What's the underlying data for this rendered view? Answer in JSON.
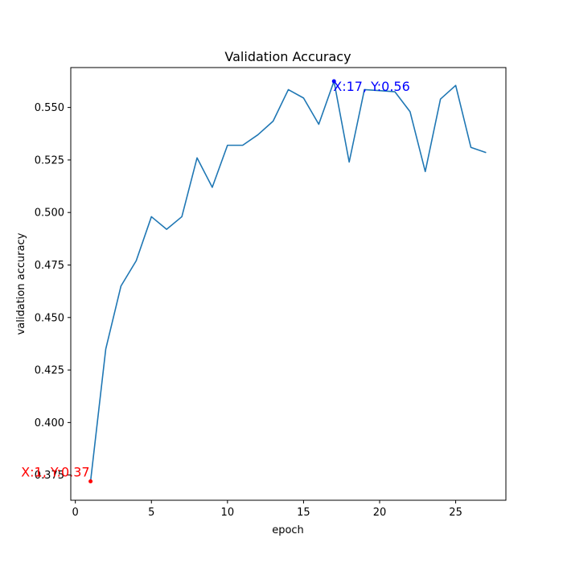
{
  "chart_data": {
    "type": "line",
    "title": "Validation Accuracy",
    "xlabel": "epoch",
    "ylabel": "validation accuracy",
    "xlim": [
      -0.3,
      28.3
    ],
    "ylim": [
      0.363,
      0.569
    ],
    "x_ticks": [
      0,
      5,
      10,
      15,
      20,
      25
    ],
    "x_tick_labels": [
      "0",
      "5",
      "10",
      "15",
      "20",
      "25"
    ],
    "y_ticks": [
      0.375,
      0.4,
      0.425,
      0.45,
      0.475,
      0.5,
      0.525,
      0.55
    ],
    "y_tick_labels": [
      "0.375",
      "0.400",
      "0.425",
      "0.450",
      "0.475",
      "0.500",
      "0.525",
      "0.550"
    ],
    "grid": false,
    "series": [
      {
        "color": "#1f77b4",
        "x": [
          1,
          2,
          3,
          4,
          5,
          6,
          7,
          8,
          9,
          10,
          11,
          12,
          13,
          14,
          15,
          16,
          17,
          18,
          19,
          20,
          21,
          22,
          23,
          24,
          25,
          26,
          27
        ],
        "y": [
          0.372,
          0.435,
          0.465,
          0.477,
          0.498,
          0.492,
          0.498,
          0.526,
          0.512,
          0.532,
          0.532,
          0.537,
          0.5435,
          0.5585,
          0.5545,
          0.542,
          0.5625,
          0.524,
          0.5585,
          0.558,
          0.5575,
          0.548,
          0.5195,
          0.554,
          0.5605,
          0.531,
          0.5285
        ]
      }
    ],
    "annotations": [
      {
        "text": "X:1, Y:0.37",
        "x": 1,
        "y": 0.372,
        "color": "#ff0000"
      },
      {
        "text": "X:17, Y:0.56",
        "x": 17,
        "y": 0.5625,
        "color": "#0000ff"
      }
    ]
  }
}
